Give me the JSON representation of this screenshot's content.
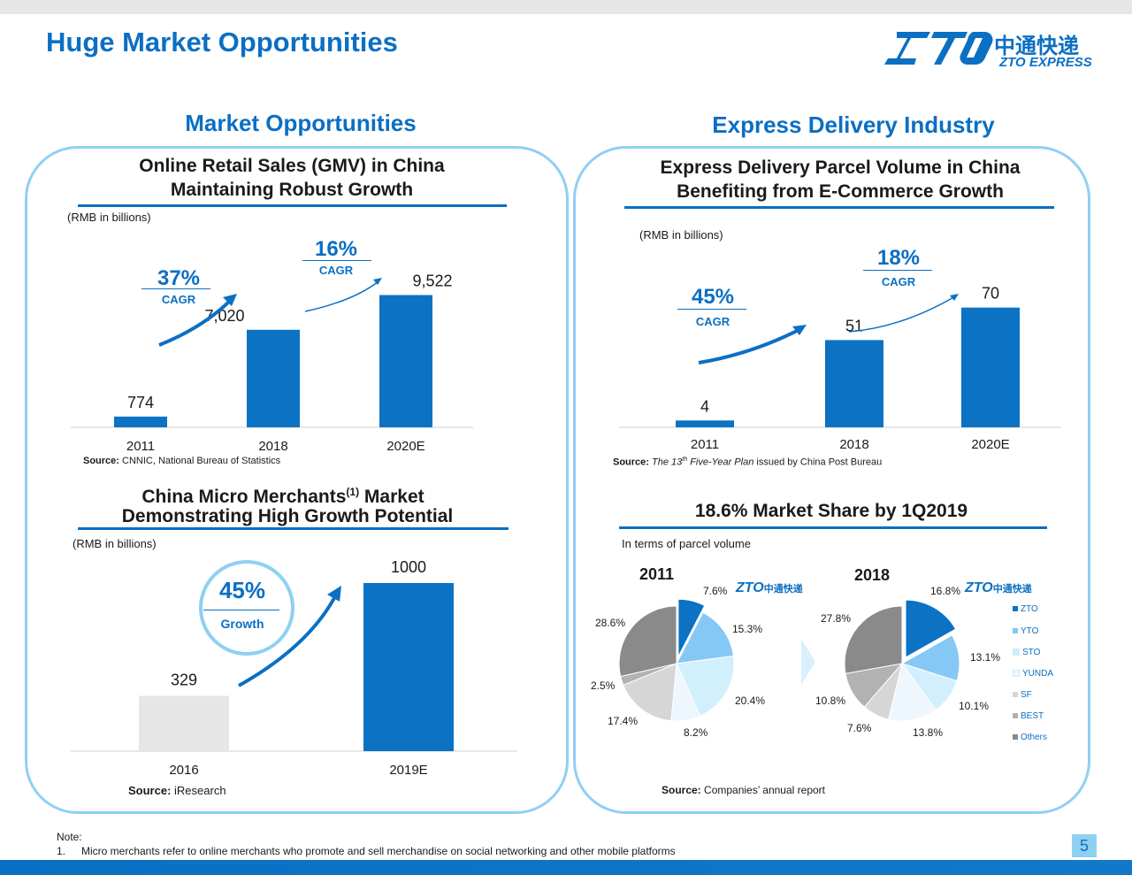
{
  "page": {
    "title": "Huge Market Opportunities",
    "page_number": "5"
  },
  "logo": {
    "brand": "ZTO",
    "chinese": "中通快递",
    "english": "ZTO EXPRESS"
  },
  "left_section_title": "Market Opportunities",
  "right_section_title": "Express Delivery Industry",
  "gmv": {
    "title_line1": "Online Retail Sales (GMV) in China",
    "title_line2": "Maintaining  Robust Growth",
    "unit": "(RMB in billions)",
    "cagr1_value": "37%",
    "cagr1_label": "CAGR",
    "cagr2_value": "16%",
    "cagr2_label": "CAGR",
    "source_label": "Source:",
    "source_text": " CNNIC, National Bureau of Statistics"
  },
  "parcel": {
    "title_line1": "Express Delivery Parcel Volume in China",
    "title_line2": "Benefiting from E-Commerce Growth",
    "unit": "(RMB in billions)",
    "cagr1_value": "45%",
    "cagr1_label": "CAGR",
    "cagr2_value": "18%",
    "cagr2_label": "CAGR",
    "source_label": "Source:",
    "source_text_a": " The 13",
    "source_sup": "th",
    "source_text_b": " Five-Year Plan",
    "source_text_c": " issued by China Post Bureau"
  },
  "micro": {
    "title_line1": "China Micro Merchants",
    "title_sup": "(1)",
    "title_line1b": " Market",
    "title_line2": "Demonstrating High Growth Potential",
    "unit": "(RMB in billions)",
    "growth_value": "45%",
    "growth_label": "Growth",
    "source_label": "Source:",
    "source_text": " iResearch"
  },
  "share": {
    "title": "18.6% Market Share by 1Q2019",
    "subtitle_a": "In terms of ",
    "subtitle_b": "parcel",
    "subtitle_c": " volume",
    "year1": "2011",
    "year2": "2018",
    "source_label": "Source:",
    "source_text": " Companies’ annual report"
  },
  "chart_data": [
    {
      "type": "bar",
      "categories": [
        "2011",
        "2018",
        "2020E"
      ],
      "values": [
        774,
        7020,
        9522
      ],
      "value_labels": [
        "774",
        "7,020",
        "9,522"
      ],
      "title": "Online Retail Sales (GMV) in China",
      "ylabel": "(RMB in billions)",
      "ylim": [
        0,
        10000
      ]
    },
    {
      "type": "bar",
      "categories": [
        "2011",
        "2018",
        "2020E"
      ],
      "values": [
        4,
        51,
        70
      ],
      "value_labels": [
        "4",
        "51",
        "70"
      ],
      "title": "Express Delivery Parcel Volume in China",
      "ylabel": "(RMB in billions)",
      "ylim": [
        0,
        75
      ]
    },
    {
      "type": "bar",
      "categories": [
        "2016",
        "2019E"
      ],
      "values": [
        329,
        1000
      ],
      "value_labels": [
        "329",
        "1000"
      ],
      "title": "China Micro Merchants Market",
      "ylabel": "(RMB in billions)",
      "ylim": [
        0,
        1000
      ],
      "colors": [
        "#e6e6e6",
        "#0b72c4"
      ]
    },
    {
      "type": "pie",
      "title": "2011",
      "labels": [
        "ZTO",
        "YTO",
        "STO",
        "YUNDA",
        "SF",
        "BEST",
        "Others"
      ],
      "values": [
        7.6,
        15.3,
        20.4,
        8.2,
        17.4,
        2.5,
        28.6
      ],
      "value_labels": [
        "7.6%",
        "15.3%",
        "20.4%",
        "8.2%",
        "17.4%",
        "2.5%",
        "28.6%"
      ],
      "colors": [
        "#0b72c4",
        "#86c8f5",
        "#d2effd",
        "#eef7fd",
        "#d6d6d6",
        "#b2b2b2",
        "#8a8a8a"
      ]
    },
    {
      "type": "pie",
      "title": "2018",
      "labels": [
        "ZTO",
        "YTO",
        "STO",
        "YUNDA",
        "SF",
        "BEST",
        "Others"
      ],
      "values": [
        16.8,
        13.1,
        10.1,
        13.8,
        7.6,
        10.8,
        27.8
      ],
      "value_labels": [
        "16.8%",
        "13.1%",
        "10.1%",
        "13.8%",
        "7.6%",
        "10.8%",
        "27.8%"
      ],
      "colors": [
        "#0b72c4",
        "#86c8f5",
        "#d2effd",
        "#eef7fd",
        "#d6d6d6",
        "#b2b2b2",
        "#8a8a8a"
      ]
    }
  ],
  "legend": {
    "items": [
      "ZTO",
      "YTO",
      "STO",
      "YUNDA",
      "SF",
      "BEST",
      "Others"
    ],
    "colors": [
      "#0b72c4",
      "#86c8f5",
      "#d2effd",
      "#eef7fd",
      "#d6d6d6",
      "#b2b2b2",
      "#8a8a8a"
    ]
  },
  "footnote": {
    "label": "Note:",
    "number": "1.",
    "text": "Micro merchants refer to online merchants who promote and sell merchandise on social networking and other mobile platforms"
  }
}
